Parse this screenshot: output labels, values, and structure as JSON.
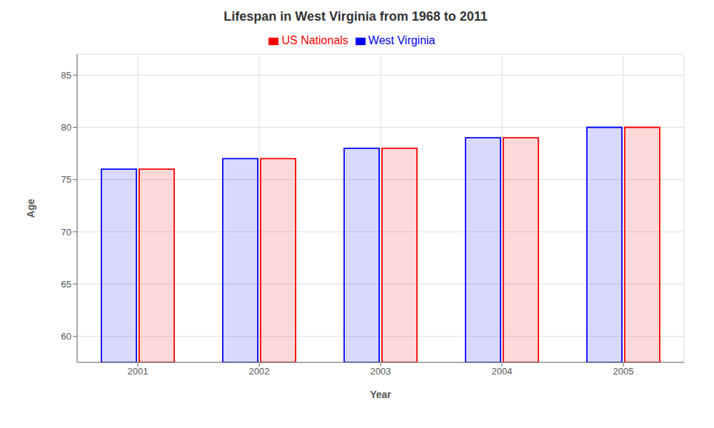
{
  "chart_data": {
    "type": "bar",
    "title": "Lifespan in West Virginia from 1968 to 2011",
    "x_label": "Year",
    "y_label": "Age",
    "categories": [
      "2001",
      "2002",
      "2003",
      "2004",
      "2005"
    ],
    "series": [
      {
        "name": "West Virginia",
        "color": "#0000ff",
        "values": [
          76,
          77,
          78,
          79,
          80
        ]
      },
      {
        "name": "US Nationals",
        "color": "#ff0000",
        "values": [
          76,
          77,
          78,
          79,
          80
        ]
      }
    ],
    "ylim": [
      57.5,
      87
    ],
    "yticks": [
      60,
      65,
      70,
      75,
      80,
      85
    ],
    "grid": true,
    "legend": "top"
  }
}
